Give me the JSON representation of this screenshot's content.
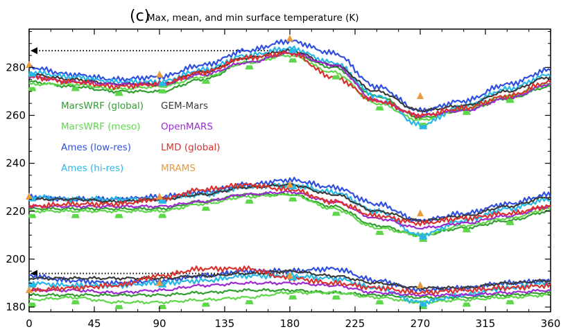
{
  "chart_data": {
    "type": "line",
    "title_panel": "(c)",
    "title": "Max, mean, and min surface temperature (K)",
    "xlim": [
      0,
      360
    ],
    "ylim": [
      178,
      296
    ],
    "x_ticks": [
      0,
      45,
      90,
      135,
      180,
      225,
      270,
      315,
      360
    ],
    "y_ticks": [
      180,
      200,
      220,
      240,
      260,
      280
    ],
    "x_tick_labels": [
      "0",
      "45",
      "90",
      "135",
      "180",
      "225",
      "270",
      "315",
      "360"
    ],
    "y_tick_labels": [
      "180",
      "200",
      "220",
      "240",
      "260",
      "280"
    ],
    "reference_lines": [
      {
        "y": 287,
        "x_start": 0,
        "x_end": 180,
        "style": "dotted-arrow"
      },
      {
        "y": 194,
        "x_start": 0,
        "x_end": 180,
        "style": "dotted-arrow"
      }
    ],
    "x": [
      0,
      30,
      60,
      90,
      120,
      150,
      180,
      210,
      240,
      270,
      300,
      330,
      360
    ],
    "series": [
      {
        "name": "MarsWRF (global)",
        "color": "#2f9e2f",
        "max": [
          274,
          272,
          270,
          270,
          275,
          282,
          286,
          280,
          268,
          259,
          262,
          267,
          272
        ],
        "mean": [
          221,
          221,
          221,
          221,
          224,
          227,
          227,
          222,
          214,
          210,
          213,
          216,
          220
        ],
        "min": [
          185,
          185,
          185,
          185,
          186,
          187,
          187,
          186,
          185,
          184,
          184,
          185,
          186
        ]
      },
      {
        "name": "MarsWRF (meso)",
        "color": "#5ed84a",
        "max": [
          273,
          273,
          271,
          272,
          276,
          282,
          285,
          278,
          265,
          258,
          263,
          268,
          273
        ],
        "mean": [
          220,
          220,
          220,
          220,
          223,
          226,
          227,
          221,
          213,
          210,
          214,
          217,
          221
        ],
        "min": [
          183,
          184,
          182,
          182,
          183,
          184,
          186,
          186,
          184,
          182,
          183,
          184,
          185
        ]
      },
      {
        "name": "Ames (low-res)",
        "color": "#2f4fe0",
        "max": [
          280,
          277,
          275,
          276,
          281,
          287,
          291,
          286,
          272,
          262,
          266,
          273,
          279
        ],
        "mean": [
          226,
          225,
          225,
          226,
          228,
          231,
          233,
          230,
          223,
          216,
          219,
          223,
          227
        ],
        "min": [
          193,
          191,
          190,
          191,
          193,
          195,
          195,
          196,
          191,
          187,
          188,
          190,
          191
        ]
      },
      {
        "name": "Ames (hi-res)",
        "color": "#27b6e6",
        "max": [
          278,
          276,
          274,
          274,
          279,
          285,
          288,
          282,
          268,
          256,
          264,
          271,
          277
        ],
        "mean": [
          226,
          225,
          225,
          225,
          227,
          230,
          231,
          228,
          220,
          210,
          216,
          221,
          225
        ],
        "min": [
          190,
          189,
          189,
          190,
          191,
          193,
          193,
          192,
          188,
          182,
          185,
          188,
          190
        ]
      },
      {
        "name": "GEM-Mars",
        "color": "#3a3a3a",
        "max": [
          277,
          275,
          273,
          273,
          278,
          284,
          287,
          281,
          270,
          262,
          264,
          270,
          276
        ],
        "mean": [
          225,
          225,
          224,
          225,
          227,
          230,
          231,
          227,
          220,
          216,
          218,
          222,
          226
        ],
        "min": [
          192,
          192,
          192,
          192,
          193,
          194,
          195,
          193,
          190,
          188,
          188,
          190,
          191
        ]
      },
      {
        "name": "OpenMARS",
        "color": "#9b2ad1",
        "max": [
          276,
          274,
          273,
          273,
          277,
          282,
          286,
          281,
          266,
          260,
          262,
          267,
          273
        ],
        "mean": [
          222,
          222,
          222,
          222,
          224,
          227,
          228,
          224,
          217,
          213,
          215,
          218,
          222
        ],
        "min": [
          187,
          187,
          186,
          187,
          189,
          190,
          190,
          189,
          186,
          185,
          185,
          186,
          187
        ]
      },
      {
        "name": "LMD (global)",
        "color": "#d8322e",
        "max": [
          276,
          274,
          272,
          273,
          278,
          284,
          286,
          276,
          266,
          260,
          263,
          268,
          274
        ],
        "mean": [
          222,
          223,
          223,
          225,
          229,
          231,
          229,
          224,
          218,
          215,
          217,
          219,
          222
        ],
        "min": [
          187,
          188,
          189,
          193,
          196,
          196,
          192,
          190,
          188,
          186,
          187,
          188,
          189
        ]
      },
      {
        "name": "MRAMS",
        "color": "#e89a3c",
        "max": [
          281,
          null,
          null,
          277,
          null,
          null,
          292,
          null,
          null,
          268,
          null,
          null,
          null
        ],
        "mean": [
          226,
          null,
          null,
          226,
          null,
          null,
          231,
          null,
          null,
          219,
          null,
          null,
          null
        ],
        "min": [
          187,
          null,
          null,
          190,
          null,
          null,
          193,
          null,
          null,
          189,
          null,
          null,
          null
        ]
      }
    ],
    "legend": [
      {
        "label": "MarsWRF (global)",
        "color": "#2f9e2f"
      },
      {
        "label": "GEM-Mars",
        "color": "#3a3a3a"
      },
      {
        "label": "MarsWRF (meso)",
        "color": "#5ed84a"
      },
      {
        "label": "OpenMARS",
        "color": "#9b2ad1"
      },
      {
        "label": "Ames (low-res)",
        "color": "#2f4fe0"
      },
      {
        "label": "LMD (global)",
        "color": "#d8322e"
      },
      {
        "label": "Ames (hi-res)",
        "color": "#27b6e6"
      },
      {
        "label": "MRAMS",
        "color": "#e89a3c"
      }
    ],
    "legend_placement": "left-middle, two columns",
    "grid": false
  }
}
